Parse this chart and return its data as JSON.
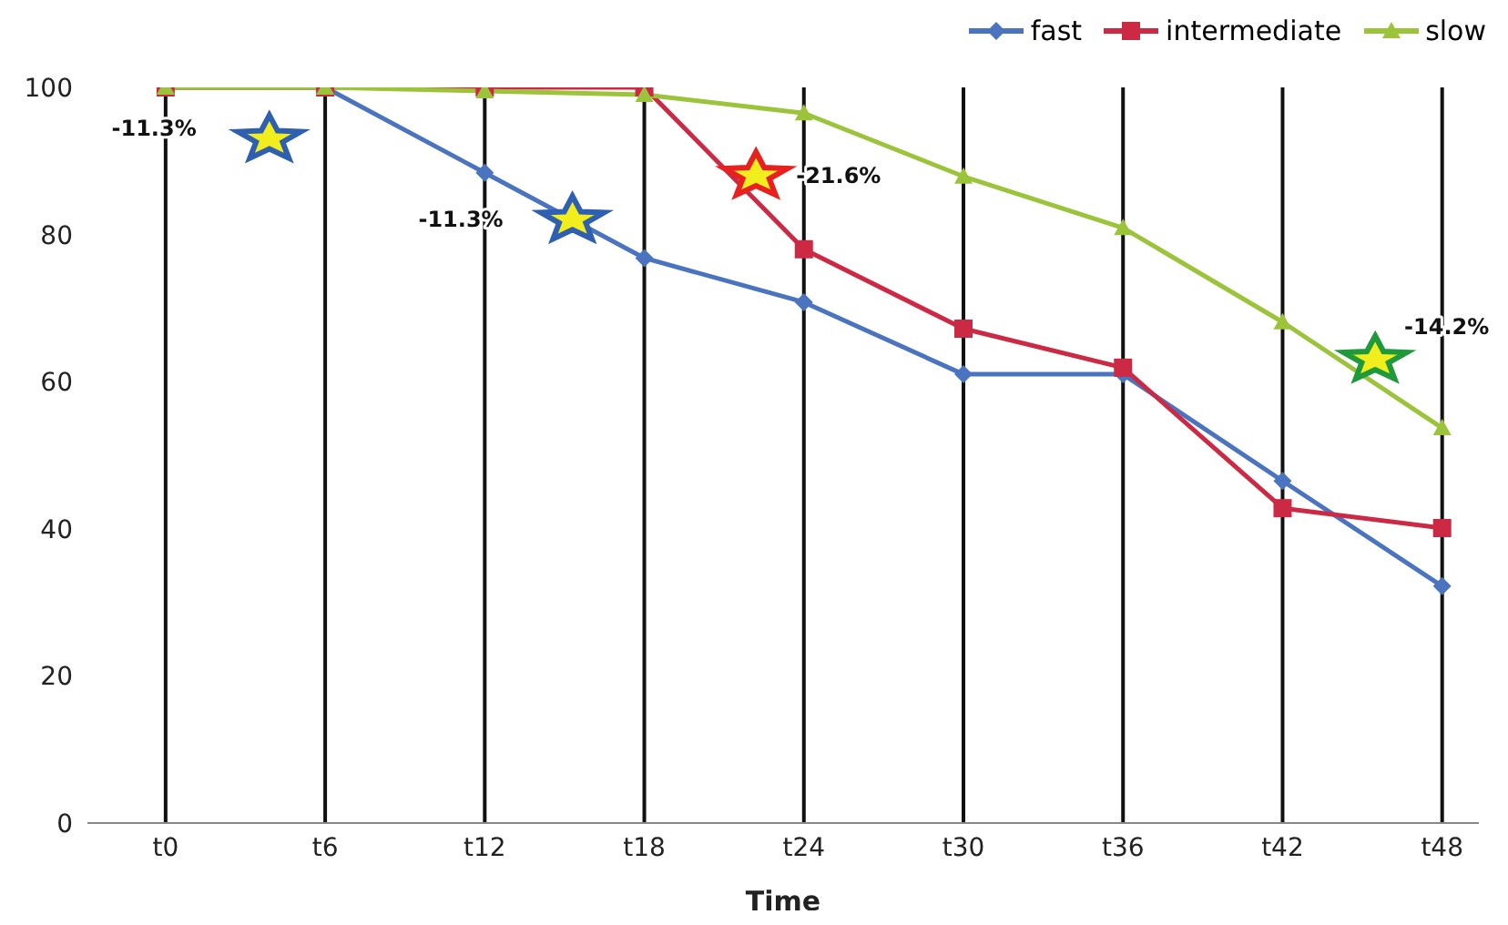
{
  "chart_data": {
    "type": "line",
    "xlabel": "Time",
    "categories": [
      "t0",
      "t6",
      "t12",
      "t18",
      "t24",
      "t30",
      "t36",
      "t42",
      "t48"
    ],
    "series": [
      {
        "name": "fast",
        "color": "#4a74c0",
        "marker": "diamond",
        "values": [
          100,
          100,
          88.4,
          76.8,
          70.8,
          61.0,
          61.0,
          46.5,
          32.2
        ]
      },
      {
        "name": "intermediate",
        "color": "#cc2a44",
        "marker": "square",
        "values": [
          100,
          100,
          100,
          100,
          78.0,
          67.2,
          61.9,
          42.8,
          40.1
        ]
      },
      {
        "name": "slow",
        "color": "#9bc43a",
        "marker": "triangle",
        "values": [
          100,
          100,
          99.5,
          99,
          96.5,
          87.9,
          80.9,
          68.1,
          53.7
        ]
      }
    ],
    "ylim": [
      0,
      100
    ],
    "yticks": [
      0,
      20,
      40,
      60,
      80,
      100
    ],
    "grid": "x",
    "legend": "top right",
    "annotations": [
      "-11.3%",
      "-11.3%",
      "-21.6%",
      "-14.2%"
    ]
  }
}
